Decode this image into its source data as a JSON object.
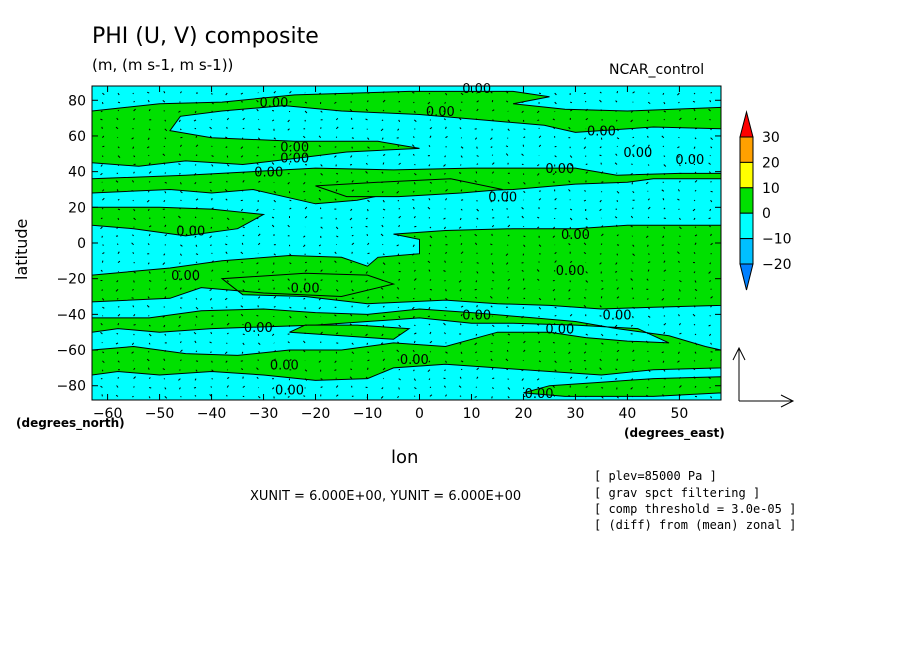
{
  "header": {
    "title": "PHI (U, V) composite",
    "units": "(m, (m s-1, m s-1))",
    "case_name": "NCAR_control"
  },
  "axes": {
    "x_label": "lon",
    "y_label": "latitude",
    "x_units": "(degrees_east)",
    "y_units": "(degrees_north)"
  },
  "vector_unit_text": "XUNIT = 6.000E+00, YUNIT = 6.000E+00",
  "info_lines": [
    "[ plev=85000 Pa ]",
    "[ grav spct filtering ]",
    "[ comp threshold = 3.0e-05 ]",
    "[ (diff) from (mean) zonal ]"
  ],
  "chart_data": {
    "type": "contour",
    "field": "PHI",
    "vector_field": [
      "U",
      "V"
    ],
    "xlim": [
      -63,
      58
    ],
    "ylim": [
      -88,
      88
    ],
    "x_ticks": [
      -60,
      -50,
      -40,
      -30,
      -20,
      -10,
      0,
      10,
      20,
      30,
      40,
      50
    ],
    "y_ticks": [
      -80,
      -60,
      -40,
      -20,
      0,
      20,
      40,
      60,
      80
    ],
    "contour_level": 0,
    "contour_label": "0.00",
    "colorbar": {
      "levels": [
        -20,
        -10,
        0,
        10,
        20,
        30
      ],
      "colors": [
        "#0080ff",
        "#00c0ff",
        "#00ffff",
        "#00e000",
        "#ffff00",
        "#ffa000",
        "#ff0000"
      ],
      "extend": "both"
    },
    "contour_label_positions": [
      {
        "lon": -28,
        "lat": 79
      },
      {
        "lon": 4,
        "lat": 74
      },
      {
        "lon": 11,
        "lat": 87
      },
      {
        "lon": 35,
        "lat": 63
      },
      {
        "lon": -24,
        "lat": 54
      },
      {
        "lon": -24,
        "lat": 48
      },
      {
        "lon": -29,
        "lat": 40
      },
      {
        "lon": 42,
        "lat": 51
      },
      {
        "lon": 52,
        "lat": 47
      },
      {
        "lon": 27,
        "lat": 42
      },
      {
        "lon": 16,
        "lat": 26
      },
      {
        "lon": -44,
        "lat": 7
      },
      {
        "lon": 30,
        "lat": 5
      },
      {
        "lon": 29,
        "lat": -15
      },
      {
        "lon": -45,
        "lat": -18
      },
      {
        "lon": -22,
        "lat": -25
      },
      {
        "lon": 11,
        "lat": -40
      },
      {
        "lon": 38,
        "lat": -40
      },
      {
        "lon": 27,
        "lat": -48
      },
      {
        "lon": -31,
        "lat": -47
      },
      {
        "lon": -1,
        "lat": -65
      },
      {
        "lon": -26,
        "lat": -68
      },
      {
        "lon": -25,
        "lat": -82
      },
      {
        "lon": 23,
        "lat": -84
      }
    ],
    "positive_regions": [
      [
        [
          -63,
          74
        ],
        [
          -50,
          78
        ],
        [
          -38,
          79
        ],
        [
          -24,
          83
        ],
        [
          -2,
          85
        ],
        [
          18,
          85
        ],
        [
          25,
          82
        ],
        [
          18,
          78
        ],
        [
          28,
          75
        ],
        [
          40,
          74
        ],
        [
          58,
          76
        ],
        [
          58,
          64
        ],
        [
          45,
          65
        ],
        [
          30,
          62
        ],
        [
          24,
          66
        ],
        [
          12,
          69
        ],
        [
          0,
          72
        ],
        [
          -15,
          74
        ],
        [
          -26,
          77
        ],
        [
          -38,
          74
        ],
        [
          -46,
          71
        ],
        [
          -48,
          63
        ],
        [
          -40,
          59
        ],
        [
          -24,
          57
        ],
        [
          -8,
          57
        ],
        [
          0,
          53
        ],
        [
          -14,
          51
        ],
        [
          -25,
          47
        ],
        [
          -34,
          44
        ],
        [
          -45,
          46
        ],
        [
          -54,
          43
        ],
        [
          -63,
          45
        ]
      ],
      [
        [
          -63,
          36
        ],
        [
          -45,
          38
        ],
        [
          -32,
          40
        ],
        [
          -20,
          42
        ],
        [
          -5,
          41
        ],
        [
          10,
          42
        ],
        [
          18,
          42
        ],
        [
          30,
          42
        ],
        [
          38,
          38
        ],
        [
          50,
          39
        ],
        [
          58,
          39
        ],
        [
          58,
          36
        ],
        [
          45,
          36
        ],
        [
          40,
          34
        ],
        [
          30,
          33
        ],
        [
          18,
          30
        ],
        [
          8,
          29
        ],
        [
          -5,
          28
        ],
        [
          -12,
          24
        ],
        [
          -20,
          22
        ],
        [
          -32,
          30
        ],
        [
          -40,
          28
        ],
        [
          -48,
          30
        ],
        [
          -63,
          28
        ]
      ],
      [
        [
          -20,
          32
        ],
        [
          -8,
          34
        ],
        [
          6,
          36
        ],
        [
          16,
          30
        ],
        [
          8,
          28
        ],
        [
          -4,
          26
        ],
        [
          -14,
          26
        ]
      ],
      [
        [
          -63,
          20
        ],
        [
          -50,
          20
        ],
        [
          -40,
          19
        ],
        [
          -30,
          16
        ],
        [
          -35,
          8
        ],
        [
          -45,
          4
        ],
        [
          -55,
          8
        ],
        [
          -63,
          10
        ]
      ],
      [
        [
          -5,
          5
        ],
        [
          5,
          7
        ],
        [
          18,
          8
        ],
        [
          30,
          8
        ],
        [
          40,
          10
        ],
        [
          58,
          10
        ],
        [
          58,
          -35
        ],
        [
          45,
          -36
        ],
        [
          35,
          -37
        ],
        [
          25,
          -35
        ],
        [
          15,
          -34
        ],
        [
          5,
          -32
        ],
        [
          -10,
          -34
        ],
        [
          -22,
          -30
        ],
        [
          -34,
          -29
        ],
        [
          -38,
          -20
        ],
        [
          -22,
          -17
        ],
        [
          -10,
          -18
        ],
        [
          -5,
          -23
        ],
        [
          -15,
          -30
        ],
        [
          -30,
          -28
        ],
        [
          -42,
          -25
        ],
        [
          -48,
          -31
        ],
        [
          -63,
          -33
        ],
        [
          -63,
          -42
        ],
        [
          -52,
          -42
        ],
        [
          -42,
          -38
        ],
        [
          -30,
          -37
        ],
        [
          -20,
          -39
        ],
        [
          -10,
          -40
        ],
        [
          0,
          -37
        ],
        [
          10,
          -39
        ],
        [
          22,
          -42
        ],
        [
          30,
          -44
        ],
        [
          38,
          -48
        ],
        [
          48,
          -52
        ],
        [
          55,
          -58
        ],
        [
          58,
          -60
        ],
        [
          58,
          -70
        ],
        [
          45,
          -71
        ],
        [
          35,
          -74
        ],
        [
          25,
          -72
        ],
        [
          15,
          -70
        ],
        [
          5,
          -68
        ],
        [
          -5,
          -70
        ],
        [
          -10,
          -76
        ],
        [
          -20,
          -77
        ],
        [
          -30,
          -74
        ],
        [
          -40,
          -72
        ],
        [
          -50,
          -74
        ],
        [
          -58,
          -72
        ],
        [
          -63,
          -74
        ],
        [
          -63,
          -88
        ],
        [
          58,
          -88
        ],
        [
          58,
          -75
        ],
        [
          45,
          -76
        ],
        [
          35,
          -78
        ],
        [
          25,
          -80
        ],
        [
          20,
          -84
        ],
        [
          28,
          -86
        ],
        [
          45,
          -86
        ],
        [
          58,
          -84
        ],
        [
          58,
          -88
        ],
        [
          -63,
          -88
        ],
        [
          -63,
          -60
        ],
        [
          -55,
          -58
        ],
        [
          -45,
          -62
        ],
        [
          -35,
          -63
        ],
        [
          -25,
          -60
        ],
        [
          -15,
          -60
        ],
        [
          -5,
          -56
        ],
        [
          5,
          -58
        ],
        [
          15,
          -50
        ],
        [
          25,
          -50
        ],
        [
          32,
          -53
        ],
        [
          40,
          -55
        ],
        [
          48,
          -56
        ],
        [
          42,
          -48
        ],
        [
          30,
          -46
        ],
        [
          18,
          -45
        ],
        [
          10,
          -45
        ],
        [
          0,
          -42
        ],
        [
          -10,
          -44
        ],
        [
          -20,
          -46
        ],
        [
          -30,
          -47
        ],
        [
          -40,
          -48
        ],
        [
          -50,
          -50
        ],
        [
          -58,
          -48
        ],
        [
          -63,
          -50
        ],
        [
          -63,
          -42
        ],
        [
          -63,
          -33
        ],
        [
          -63,
          -18
        ],
        [
          -48,
          -14
        ],
        [
          -38,
          -10
        ],
        [
          -25,
          -7
        ],
        [
          -15,
          -8
        ],
        [
          -10,
          -13
        ],
        [
          -8,
          -8
        ],
        [
          0,
          -6
        ],
        [
          0,
          2
        ]
      ],
      [
        [
          -25,
          -50
        ],
        [
          -15,
          -52
        ],
        [
          -5,
          -54
        ],
        [
          -2,
          -48
        ],
        [
          -12,
          -46
        ],
        [
          -22,
          -46
        ]
      ]
    ],
    "positive_regions_units": "degrees (lon, lat); contour_level 0 separates positive (green) from negative (cyan)"
  }
}
